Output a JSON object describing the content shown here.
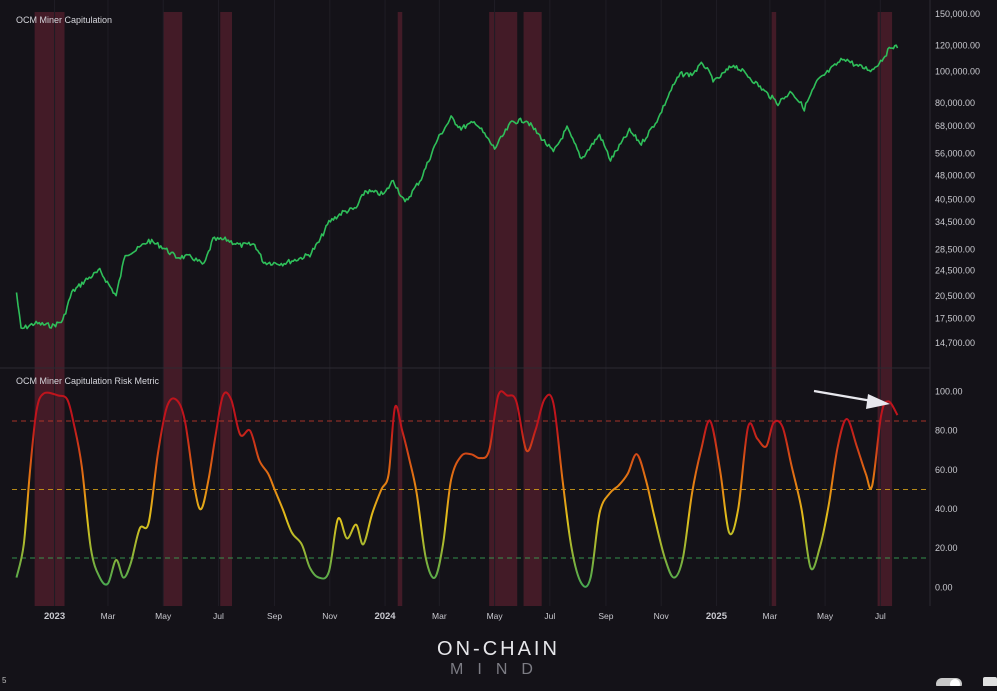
{
  "chart_data": [
    {
      "type": "line",
      "title": "OCM Miner Capitulation",
      "scale": "log",
      "y_ticks": [
        "150,000.00",
        "120,000.00",
        "100,000.00",
        "80,000.00",
        "68,000.00",
        "56,000.00",
        "48,000.00",
        "40,500.00",
        "34,500.00",
        "28,500.00",
        "24,500.00",
        "20,500.00",
        "17,500.00",
        "14,700.00"
      ],
      "ylim": [
        14000,
        150000
      ],
      "color": "#2fbf5a",
      "series": [
        {
          "points": [
            [
              "2022-11-20",
              21000
            ],
            [
              "2022-11-25",
              16200
            ],
            [
              "2022-12-10",
              16900
            ],
            [
              "2022-12-30",
              16600
            ],
            [
              "2023-01-10",
              17200
            ],
            [
              "2023-01-20",
              21000
            ],
            [
              "2023-02-05",
              23000
            ],
            [
              "2023-02-20",
              24500
            ],
            [
              "2023-03-10",
              20500
            ],
            [
              "2023-03-20",
              27500
            ],
            [
              "2023-04-01",
              28300
            ],
            [
              "2023-04-15",
              30300
            ],
            [
              "2023-04-30",
              29000
            ],
            [
              "2023-05-15",
              27000
            ],
            [
              "2023-06-01",
              27000
            ],
            [
              "2023-06-15",
              25500
            ],
            [
              "2023-06-25",
              30500
            ],
            [
              "2023-07-10",
              30500
            ],
            [
              "2023-07-25",
              29300
            ],
            [
              "2023-08-10",
              29500
            ],
            [
              "2023-08-20",
              26000
            ],
            [
              "2023-09-10",
              25800
            ],
            [
              "2023-09-25",
              26500
            ],
            [
              "2023-10-10",
              27500
            ],
            [
              "2023-10-20",
              30000
            ],
            [
              "2023-10-31",
              34500
            ],
            [
              "2023-11-15",
              37000
            ],
            [
              "2023-11-30",
              38000
            ],
            [
              "2023-12-10",
              43000
            ],
            [
              "2023-12-31",
              42000
            ],
            [
              "2024-01-10",
              46500
            ],
            [
              "2024-01-23",
              39500
            ],
            [
              "2024-02-10",
              47000
            ],
            [
              "2024-02-28",
              62000
            ],
            [
              "2024-03-14",
              72000
            ],
            [
              "2024-03-25",
              67000
            ],
            [
              "2024-04-10",
              70000
            ],
            [
              "2024-04-20",
              64000
            ],
            [
              "2024-05-01",
              58000
            ],
            [
              "2024-05-20",
              70000
            ],
            [
              "2024-06-05",
              71000
            ],
            [
              "2024-06-25",
              61000
            ],
            [
              "2024-07-05",
              56500
            ],
            [
              "2024-07-20",
              67000
            ],
            [
              "2024-08-05",
              54000
            ],
            [
              "2024-08-25",
              64000
            ],
            [
              "2024-09-06",
              53500
            ],
            [
              "2024-09-27",
              65800
            ],
            [
              "2024-10-10",
              60000
            ],
            [
              "2024-10-29",
              72000
            ],
            [
              "2024-11-12",
              88000
            ],
            [
              "2024-11-22",
              98000
            ],
            [
              "2024-12-05",
              98000
            ],
            [
              "2024-12-17",
              106000
            ],
            [
              "2024-12-30",
              93000
            ],
            [
              "2025-01-20",
              105000
            ],
            [
              "2025-02-05",
              97000
            ],
            [
              "2025-02-25",
              86000
            ],
            [
              "2025-03-10",
              80000
            ],
            [
              "2025-03-25",
              87000
            ],
            [
              "2025-04-08",
              77000
            ],
            [
              "2025-04-22",
              93000
            ],
            [
              "2025-05-10",
              103000
            ],
            [
              "2025-05-22",
              110000
            ],
            [
              "2025-06-05",
              104000
            ],
            [
              "2025-06-22",
              101000
            ],
            [
              "2025-07-03",
              109000
            ],
            [
              "2025-07-14",
              120000
            ],
            [
              "2025-07-20",
              118000
            ]
          ]
        }
      ]
    },
    {
      "type": "line",
      "title": "OCM Miner Capitulation Risk Metric",
      "y_ticks": [
        "100.00",
        "80.00",
        "60.00",
        "40.00",
        "20.00",
        "0.00"
      ],
      "ylim": [
        -8,
        110
      ],
      "x_ticks": [
        "2023",
        "Mar",
        "May",
        "Jul",
        "Sep",
        "Nov",
        "2024",
        "Mar",
        "May",
        "Jul",
        "Sep",
        "Nov",
        "2025",
        "Mar",
        "May",
        "Jul"
      ],
      "x_tick_dates": [
        "2023-01-01",
        "2023-03-01",
        "2023-05-01",
        "2023-07-01",
        "2023-09-01",
        "2023-11-01",
        "2024-01-01",
        "2024-03-01",
        "2024-05-01",
        "2024-07-01",
        "2024-09-01",
        "2024-11-01",
        "2025-01-01",
        "2025-03-01",
        "2025-05-01",
        "2025-07-01"
      ],
      "xlim": [
        "2022-11-15",
        "2025-08-05"
      ],
      "reference_lines": [
        {
          "value": 85,
          "color": "#c0392b"
        },
        {
          "value": 50,
          "color": "#d4a017"
        },
        {
          "value": 15,
          "color": "#3aa655"
        }
      ],
      "gradient": [
        "#3aa655",
        "#e2c21b",
        "#e57a12",
        "#c0141c"
      ],
      "series": [
        {
          "points": [
            [
              "2022-11-20",
              5
            ],
            [
              "2022-11-28",
              22
            ],
            [
              "2022-12-05",
              60
            ],
            [
              "2022-12-12",
              90
            ],
            [
              "2022-12-20",
              99
            ],
            [
              "2023-01-05",
              98
            ],
            [
              "2023-01-15",
              96
            ],
            [
              "2023-01-22",
              84
            ],
            [
              "2023-01-31",
              62
            ],
            [
              "2023-02-10",
              20
            ],
            [
              "2023-02-20",
              5
            ],
            [
              "2023-03-01",
              2
            ],
            [
              "2023-03-10",
              14
            ],
            [
              "2023-03-18",
              5
            ],
            [
              "2023-03-26",
              12
            ],
            [
              "2023-04-05",
              30
            ],
            [
              "2023-04-15",
              33
            ],
            [
              "2023-04-25",
              68
            ],
            [
              "2023-05-05",
              92
            ],
            [
              "2023-05-15",
              96
            ],
            [
              "2023-05-25",
              85
            ],
            [
              "2023-06-05",
              50
            ],
            [
              "2023-06-12",
              40
            ],
            [
              "2023-06-20",
              55
            ],
            [
              "2023-06-28",
              78
            ],
            [
              "2023-07-06",
              98
            ],
            [
              "2023-07-15",
              96
            ],
            [
              "2023-07-25",
              78
            ],
            [
              "2023-08-05",
              80
            ],
            [
              "2023-08-15",
              65
            ],
            [
              "2023-08-25",
              58
            ],
            [
              "2023-09-01",
              50
            ],
            [
              "2023-09-10",
              40
            ],
            [
              "2023-09-20",
              28
            ],
            [
              "2023-10-01",
              22
            ],
            [
              "2023-10-10",
              10
            ],
            [
              "2023-10-20",
              5
            ],
            [
              "2023-10-31",
              8
            ],
            [
              "2023-11-10",
              35
            ],
            [
              "2023-11-20",
              25
            ],
            [
              "2023-11-30",
              32
            ],
            [
              "2023-12-08",
              22
            ],
            [
              "2023-12-18",
              38
            ],
            [
              "2023-12-28",
              50
            ],
            [
              "2024-01-05",
              58
            ],
            [
              "2024-01-12",
              92
            ],
            [
              "2024-01-20",
              80
            ],
            [
              "2024-01-28",
              65
            ],
            [
              "2024-02-05",
              48
            ],
            [
              "2024-02-15",
              15
            ],
            [
              "2024-02-25",
              5
            ],
            [
              "2024-03-05",
              22
            ],
            [
              "2024-03-14",
              55
            ],
            [
              "2024-03-25",
              67
            ],
            [
              "2024-04-05",
              68
            ],
            [
              "2024-04-15",
              66
            ],
            [
              "2024-04-25",
              70
            ],
            [
              "2024-05-05",
              98
            ],
            [
              "2024-05-15",
              98
            ],
            [
              "2024-05-25",
              95
            ],
            [
              "2024-06-05",
              70
            ],
            [
              "2024-06-15",
              80
            ],
            [
              "2024-06-25",
              96
            ],
            [
              "2024-07-05",
              94
            ],
            [
              "2024-07-15",
              55
            ],
            [
              "2024-07-25",
              20
            ],
            [
              "2024-08-05",
              2
            ],
            [
              "2024-08-15",
              5
            ],
            [
              "2024-08-25",
              38
            ],
            [
              "2024-09-05",
              48
            ],
            [
              "2024-09-15",
              52
            ],
            [
              "2024-09-25",
              58
            ],
            [
              "2024-10-05",
              68
            ],
            [
              "2024-10-15",
              55
            ],
            [
              "2024-10-25",
              35
            ],
            [
              "2024-11-05",
              15
            ],
            [
              "2024-11-15",
              5
            ],
            [
              "2024-11-25",
              15
            ],
            [
              "2024-12-05",
              48
            ],
            [
              "2024-12-15",
              70
            ],
            [
              "2024-12-25",
              85
            ],
            [
              "2025-01-05",
              60
            ],
            [
              "2025-01-15",
              28
            ],
            [
              "2025-01-25",
              40
            ],
            [
              "2025-02-05",
              82
            ],
            [
              "2025-02-15",
              76
            ],
            [
              "2025-02-25",
              72
            ],
            [
              "2025-03-05",
              84
            ],
            [
              "2025-03-15",
              82
            ],
            [
              "2025-03-25",
              62
            ],
            [
              "2025-04-05",
              40
            ],
            [
              "2025-04-15",
              10
            ],
            [
              "2025-04-25",
              20
            ],
            [
              "2025-05-05",
              42
            ],
            [
              "2025-05-15",
              72
            ],
            [
              "2025-05-25",
              86
            ],
            [
              "2025-06-05",
              72
            ],
            [
              "2025-06-15",
              58
            ],
            [
              "2025-06-22",
              52
            ],
            [
              "2025-07-02",
              88
            ],
            [
              "2025-07-10",
              95
            ],
            [
              "2025-07-20",
              88
            ]
          ]
        }
      ]
    }
  ],
  "highlight_bands": [
    [
      "2022-12-10",
      "2023-01-12"
    ],
    [
      "2023-05-01",
      "2023-05-22"
    ],
    [
      "2023-07-03",
      "2023-07-16"
    ],
    [
      "2024-01-15",
      "2024-01-20"
    ],
    [
      "2024-04-25",
      "2024-05-26"
    ],
    [
      "2024-06-02",
      "2024-06-22"
    ],
    [
      "2025-03-03",
      "2025-03-08"
    ],
    [
      "2025-06-28",
      "2025-07-14"
    ]
  ],
  "logo": {
    "main": "ON-CHAIN",
    "sub": "MIND"
  },
  "corner_text": "5"
}
